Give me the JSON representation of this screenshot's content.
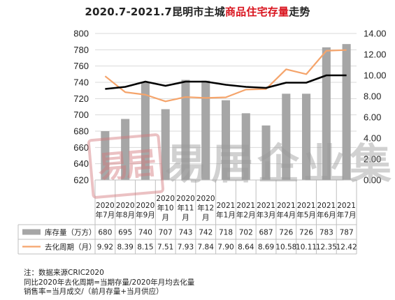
{
  "title": {
    "prefix": "2020.7-2021.7昆明市主城",
    "highlight": "商品住宅存量",
    "suffix": "走势"
  },
  "watermark": {
    "seal_text": "易居",
    "text": "易居企业集"
  },
  "notes": [
    "注：数据来源CRIC2020",
    "同比2020年去化周期=当期存量/2020年月均去化量",
    "销售率=当月成交/（前月存量+当月供应）"
  ],
  "colors": {
    "bar": "#a6a6a6",
    "line_black": "#000000",
    "line_orange": "#f5a46b",
    "grid": "#d9d9d9"
  },
  "chart_data": {
    "type": "bar",
    "categories": [
      [
        "2020",
        "年7月"
      ],
      [
        "2020",
        "年8月"
      ],
      [
        "2020",
        "年9月"
      ],
      [
        "2020",
        "年10",
        "月"
      ],
      [
        "2020",
        "年11",
        "月"
      ],
      [
        "2020",
        "年12",
        "月"
      ],
      [
        "2021",
        "年1月"
      ],
      [
        "2021",
        "年2月"
      ],
      [
        "2021",
        "年3月"
      ],
      [
        "2021",
        "年4月"
      ],
      [
        "2021",
        "年5月"
      ],
      [
        "2021",
        "年6月"
      ],
      [
        "2021",
        "年7月"
      ]
    ],
    "y_left": {
      "min": 620,
      "max": 800,
      "step": 20,
      "ticks": [
        "620",
        "640",
        "660",
        "680",
        "700",
        "720",
        "740",
        "760",
        "780",
        "800"
      ]
    },
    "y_right": {
      "min": 0,
      "max": 14,
      "step": 2,
      "ticks": [
        "0.00",
        "2.00",
        "4.00",
        "6.00",
        "8.00",
        "10.00",
        "12.00",
        "14.00"
      ]
    },
    "grid": true,
    "series": [
      {
        "name": "库存量（万方）",
        "type": "bar",
        "axis": "left",
        "values": [
          680,
          695,
          740,
          707,
          743,
          742,
          718,
          702,
          687,
          726,
          726,
          783,
          787
        ],
        "labels": [
          "680",
          "695",
          "740",
          "707",
          "743",
          "742",
          "718",
          "702",
          "687",
          "726",
          "726",
          "783",
          "787"
        ]
      },
      {
        "name": "去化周期（月）",
        "type": "line",
        "axis": "right",
        "values": [
          9.92,
          8.39,
          8.15,
          7.51,
          7.93,
          7.84,
          7.9,
          8.64,
          8.69,
          10.58,
          10.11,
          12.35,
          12.42
        ],
        "labels": [
          "9.92",
          "8.39",
          "8.15",
          "7.51",
          "7.93",
          "7.84",
          "7.90",
          "8.64",
          "8.69",
          "10.58",
          "10.11",
          "12.35",
          "12.42"
        ]
      },
      {
        "type": "line",
        "axis": "right",
        "values": [
          8.7,
          8.9,
          9.4,
          9.0,
          9.4,
          9.4,
          9.1,
          8.9,
          8.8,
          9.3,
          9.3,
          10.0,
          10.0
        ]
      }
    ]
  }
}
